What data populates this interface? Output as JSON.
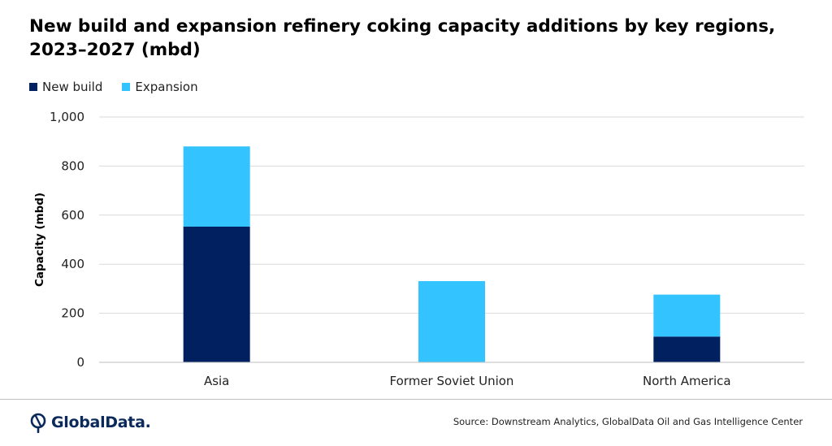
{
  "header": {
    "title_line1": "New build and expansion refinery coking capacity additions by key regions,",
    "title_line2": "2023–2027 (mbd)"
  },
  "legend": {
    "items": [
      {
        "label": "New build",
        "color": "#002060"
      },
      {
        "label": "Expansion",
        "color": "#33C3FF"
      }
    ]
  },
  "chart_data": {
    "type": "bar",
    "stacked": true,
    "categories": [
      "Asia",
      "Former Soviet Union",
      "North America"
    ],
    "series": [
      {
        "name": "New build",
        "values": [
          553,
          0,
          105
        ],
        "color": "#002060"
      },
      {
        "name": "Expansion",
        "values": [
          327,
          331,
          171
        ],
        "color": "#33C3FF"
      }
    ],
    "title": "New build and expansion refinery coking capacity additions by key regions, 2023–2027 (mbd)",
    "xlabel": "",
    "ylabel": "Capacity (mbd)",
    "ylim": [
      0,
      1000
    ],
    "yticks": [
      0,
      200,
      400,
      600,
      800,
      1000
    ],
    "ytick_labels": [
      "0",
      "200",
      "400",
      "600",
      "800",
      "1,000"
    ],
    "grid": true,
    "legend_position": "top-left"
  },
  "footer": {
    "logo_text": "GlobalData.",
    "source": "Source: Downstream Analytics, GlobalData Oil and Gas Intelligence Center"
  }
}
